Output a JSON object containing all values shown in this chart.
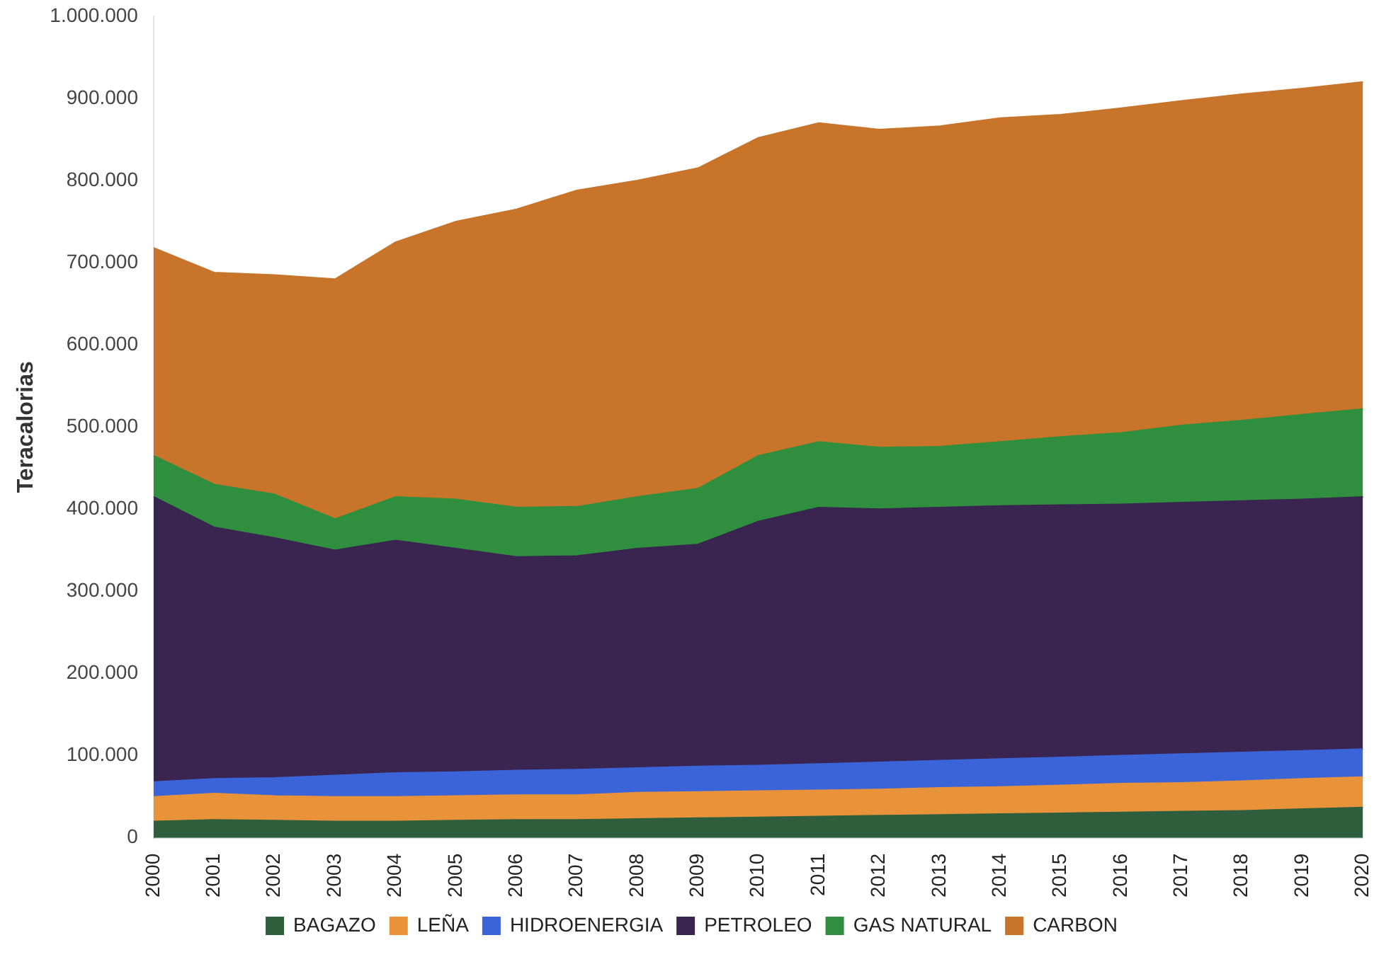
{
  "chart_data": {
    "type": "area",
    "stacked": true,
    "ylabel": "Teracalorias",
    "legend": "bottom",
    "grid": false,
    "categories": [
      "2000",
      "2001",
      "2002",
      "2003",
      "2004",
      "2005",
      "2006",
      "2007",
      "2008",
      "2009",
      "2010",
      "2011",
      "2012",
      "2013",
      "2014",
      "2015",
      "2016",
      "2017",
      "2018",
      "2019",
      "2020"
    ],
    "ylim": [
      0,
      1000000
    ],
    "yticks": [
      {
        "value": 0,
        "label": "0"
      },
      {
        "value": 100000,
        "label": "100.000"
      },
      {
        "value": 200000,
        "label": "200.000"
      },
      {
        "value": 300000,
        "label": "300.000"
      },
      {
        "value": 400000,
        "label": "400.000"
      },
      {
        "value": 500000,
        "label": "500.000"
      },
      {
        "value": 600000,
        "label": "600.000"
      },
      {
        "value": 700000,
        "label": "700.000"
      },
      {
        "value": 800000,
        "label": "800.000"
      },
      {
        "value": 900000,
        "label": "900.000"
      },
      {
        "value": 1000000,
        "label": "1.000.000"
      }
    ],
    "series": [
      {
        "name": "BAGAZO",
        "color": "#2e5e3e",
        "values": [
          20000,
          22000,
          21000,
          20000,
          20000,
          21000,
          22000,
          22000,
          23000,
          24000,
          25000,
          26000,
          27000,
          28000,
          29000,
          30000,
          31000,
          32000,
          33000,
          35000,
          37000
        ]
      },
      {
        "name": "LEÑA",
        "color": "#e8923a",
        "values": [
          30000,
          32000,
          30000,
          30000,
          30000,
          30000,
          30000,
          30000,
          32000,
          32000,
          32000,
          32000,
          32000,
          33000,
          33000,
          34000,
          35000,
          35000,
          36000,
          37000,
          37000
        ]
      },
      {
        "name": "HIDROENERGIA",
        "color": "#3a64d8",
        "values": [
          18000,
          18000,
          22000,
          26000,
          29000,
          29000,
          30000,
          31000,
          30000,
          31000,
          31000,
          32000,
          33000,
          33000,
          34000,
          34000,
          34000,
          35000,
          35000,
          34000,
          34000
        ]
      },
      {
        "name": "PETROLEO",
        "color": "#3a2450",
        "values": [
          347000,
          306000,
          292000,
          274000,
          283000,
          272000,
          260000,
          260000,
          267000,
          270000,
          297000,
          312000,
          308000,
          308000,
          308000,
          307000,
          306000,
          306000,
          306000,
          306000,
          307000
        ]
      },
      {
        "name": "GAS NATURAL",
        "color": "#2f8f3e",
        "values": [
          50000,
          52000,
          53000,
          38000,
          53000,
          60000,
          60000,
          60000,
          63000,
          68000,
          80000,
          80000,
          75000,
          74000,
          78000,
          83000,
          87000,
          94000,
          98000,
          103000,
          107000
        ]
      },
      {
        "name": "CARBON",
        "color": "#c8742a",
        "values": [
          253000,
          258000,
          267000,
          292000,
          310000,
          338000,
          363000,
          385000,
          385000,
          390000,
          387000,
          388000,
          387000,
          390000,
          394000,
          392000,
          395000,
          395000,
          397000,
          397000,
          398000
        ]
      }
    ]
  }
}
